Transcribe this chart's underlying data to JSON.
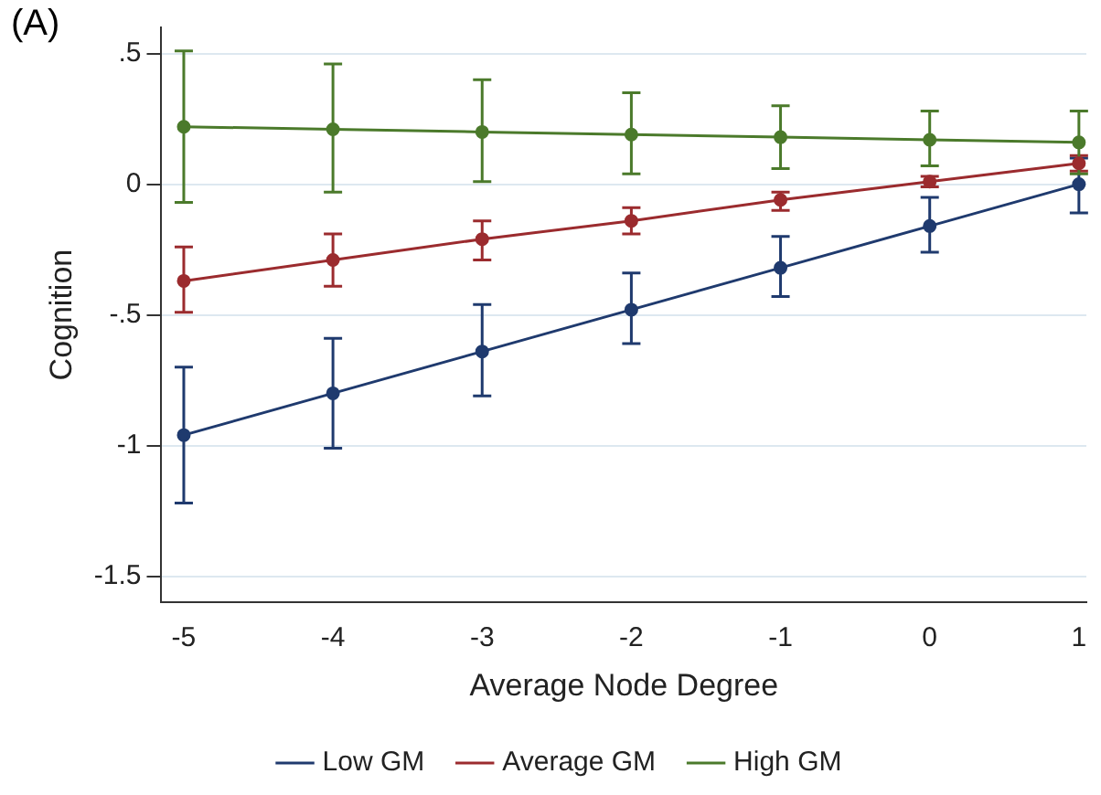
{
  "chart_data": {
    "type": "line",
    "xlabel": "Average Node Degree",
    "ylabel": "Cognition",
    "annotations": [
      "(A)"
    ],
    "x": [
      -5,
      -4,
      -3,
      -2,
      -1,
      0,
      1
    ],
    "xlim": [
      -5.15,
      1.05
    ],
    "xticks": [
      -5,
      -4,
      -3,
      -2,
      -1,
      0,
      1
    ],
    "ylim": [
      -1.6,
      0.6
    ],
    "yticks": [
      {
        "value": -1.5,
        "label": "-1.5"
      },
      -1,
      {
        "value": -0.5,
        "label": "-.5"
      },
      0,
      {
        "value": 0.5,
        "label": ".5"
      }
    ],
    "grid": "y",
    "legend": "bottom",
    "marker": "circle",
    "line_style": "solid",
    "series": [
      {
        "name": "Low GM",
        "color": "#1f3a6e",
        "values": [
          -0.96,
          -0.8,
          -0.64,
          -0.48,
          -0.32,
          -0.16,
          0
        ],
        "errors": [
          [
            -1.22,
            -0.7
          ],
          [
            -1.01,
            -0.59
          ],
          [
            -0.81,
            -0.46
          ],
          [
            -0.61,
            -0.34
          ],
          [
            -0.43,
            -0.2
          ],
          [
            -0.26,
            -0.05
          ],
          [
            -0.11,
            0.1
          ]
        ]
      },
      {
        "name": "Average GM",
        "color": "#9b2b2e",
        "values": [
          -0.37,
          -0.29,
          -0.21,
          -0.14,
          -0.06,
          0.01,
          0.08
        ],
        "errors": [
          [
            -0.49,
            -0.24
          ],
          [
            -0.39,
            -0.19
          ],
          [
            -0.29,
            -0.14
          ],
          [
            -0.19,
            -0.09
          ],
          [
            -0.1,
            -0.03
          ],
          [
            -0.01,
            0.03
          ],
          [
            0.05,
            0.11
          ]
        ]
      },
      {
        "name": "High GM",
        "color": "#4b7a2b",
        "values": [
          0.22,
          0.21,
          0.2,
          0.19,
          0.18,
          0.17,
          0.16
        ],
        "errors": [
          [
            -0.07,
            0.51
          ],
          [
            -0.03,
            0.46
          ],
          [
            0.01,
            0.4
          ],
          [
            0.04,
            0.35
          ],
          [
            0.06,
            0.3
          ],
          [
            0.07,
            0.28
          ],
          [
            0.04,
            0.28
          ]
        ]
      }
    ]
  }
}
